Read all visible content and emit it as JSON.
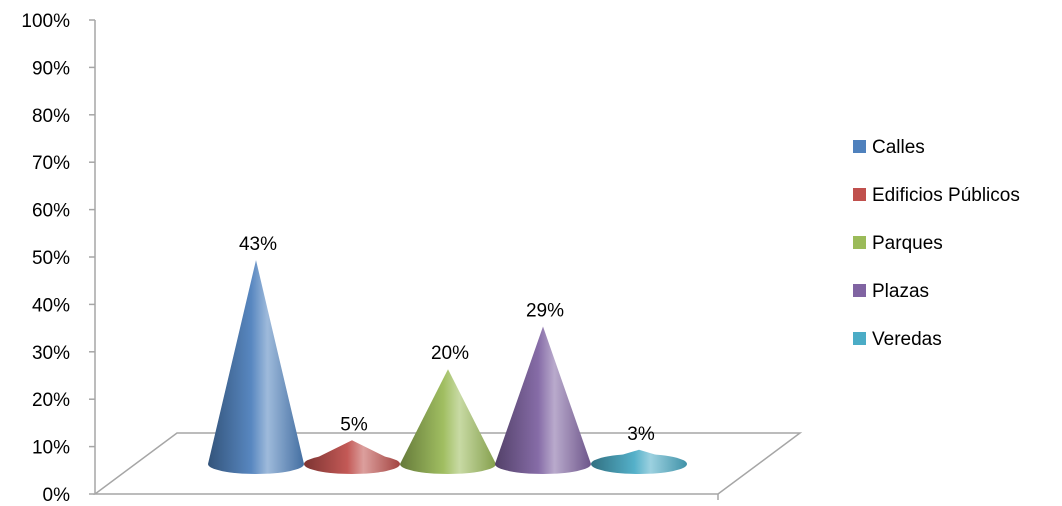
{
  "chart_data": {
    "type": "bar",
    "subtype": "3d-cone",
    "title": "",
    "xlabel": "",
    "ylabel": "",
    "ylim": [
      0,
      100
    ],
    "yticks": [
      "0%",
      "10%",
      "20%",
      "30%",
      "40%",
      "50%",
      "60%",
      "70%",
      "80%",
      "90%",
      "100%"
    ],
    "legend_position": "right",
    "grid": false,
    "series": [
      {
        "name": "Calles",
        "value": 43,
        "label": "43%",
        "color": "#4f81bd"
      },
      {
        "name": "Edificios Públicos",
        "value": 5,
        "label": "5%",
        "color": "#c0504d"
      },
      {
        "name": "Parques",
        "value": 20,
        "label": "20%",
        "color": "#9bbb59"
      },
      {
        "name": "Plazas",
        "value": 29,
        "label": "29%",
        "color": "#8064a2"
      },
      {
        "name": "Veredas",
        "value": 3,
        "label": "3%",
        "color": "#4bacc6"
      }
    ]
  }
}
